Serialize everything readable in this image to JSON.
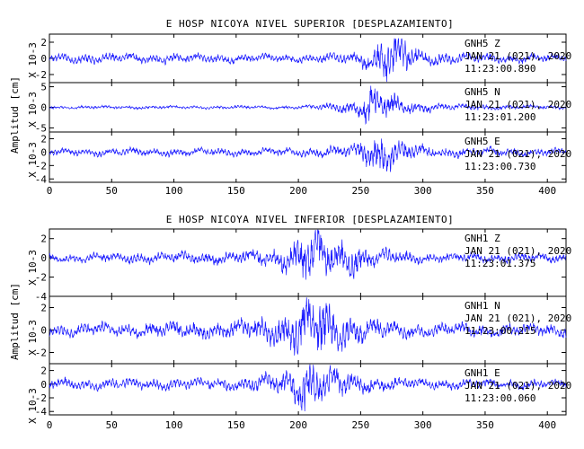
{
  "chart_data": [
    {
      "type": "line",
      "title": "E HOSP NICOYA NIVEL SUPERIOR [DESPLAZAMIENTO]",
      "ylabel": "Amplitud [cm]",
      "yscale_label": "X 10-3",
      "xlim": [
        0,
        415
      ],
      "xticks": [
        0,
        50,
        100,
        150,
        200,
        250,
        300,
        350,
        400
      ],
      "series": [
        {
          "name": "GNH5  Z",
          "date": "JAN 21 (021), 2020",
          "time": "11:23:00.890",
          "ylim": [
            -3,
            3
          ],
          "yticks": [
            -2,
            0,
            2
          ],
          "envelope": [
            [
              0,
              0.5
            ],
            [
              30,
              0.6
            ],
            [
              200,
              0.45
            ],
            [
              240,
              0.6
            ],
            [
              260,
              1.5
            ],
            [
              270,
              2.7
            ],
            [
              285,
              2.2
            ],
            [
              300,
              0.8
            ],
            [
              350,
              0.5
            ],
            [
              415,
              0.45
            ]
          ]
        },
        {
          "name": "GNH5  N",
          "date": "JAN 21 (021), 2020",
          "time": "11:23:01.200",
          "ylim": [
            -6,
            6
          ],
          "yticks": [
            -5,
            0,
            5
          ],
          "envelope": [
            [
              0,
              0.35
            ],
            [
              200,
              0.35
            ],
            [
              230,
              0.9
            ],
            [
              250,
              2.0
            ],
            [
              258,
              4.8
            ],
            [
              265,
              3.5
            ],
            [
              285,
              1.6
            ],
            [
              320,
              0.7
            ],
            [
              415,
              0.35
            ]
          ]
        },
        {
          "name": "GNH5  E",
          "date": "JAN 21 (021), 2020",
          "time": "11:23:00.730",
          "ylim": [
            -4.5,
            3
          ],
          "yticks": [
            -4,
            -2,
            0,
            2
          ],
          "envelope": [
            [
              0,
              0.5
            ],
            [
              200,
              0.55
            ],
            [
              240,
              0.9
            ],
            [
              258,
              2.0
            ],
            [
              265,
              2.8
            ],
            [
              280,
              1.6
            ],
            [
              310,
              0.7
            ],
            [
              415,
              0.45
            ]
          ]
        }
      ]
    },
    {
      "type": "line",
      "title": "E HOSP NICOYA NIVEL INFERIOR [DESPLAZAMIENTO]",
      "ylabel": "Amplitud [cm]",
      "yscale_label": "X 10-3",
      "xlim": [
        0,
        415
      ],
      "xticks": [
        0,
        50,
        100,
        150,
        200,
        250,
        300,
        350,
        400
      ],
      "series": [
        {
          "name": "GNH1  Z",
          "date": "JAN 21 (021), 2020",
          "time": "11:23:01.375",
          "ylim": [
            -4,
            3
          ],
          "yticks": [
            -4,
            -2,
            0,
            2
          ],
          "envelope": [
            [
              0,
              0.4
            ],
            [
              150,
              0.6
            ],
            [
              180,
              0.9
            ],
            [
              200,
              1.8
            ],
            [
              215,
              2.8
            ],
            [
              230,
              2.0
            ],
            [
              260,
              0.9
            ],
            [
              300,
              0.45
            ],
            [
              415,
              0.45
            ]
          ]
        },
        {
          "name": "GNH1  N",
          "date": "JAN 21 (021), 2020",
          "time": "11:23:00.215",
          "ylim": [
            -3,
            3
          ],
          "yticks": [
            -2,
            0,
            2
          ],
          "envelope": [
            [
              0,
              0.5
            ],
            [
              150,
              0.7
            ],
            [
              190,
              1.3
            ],
            [
              205,
              2.8
            ],
            [
              220,
              2.4
            ],
            [
              250,
              1.0
            ],
            [
              300,
              0.55
            ],
            [
              415,
              0.5
            ]
          ]
        },
        {
          "name": "GNH1  E",
          "date": "JAN 21 (021), 2020",
          "time": "11:23:00.060",
          "ylim": [
            -4.5,
            3
          ],
          "yticks": [
            -4,
            -2,
            0,
            2
          ],
          "envelope": [
            [
              0,
              0.7
            ],
            [
              150,
              0.8
            ],
            [
              190,
              1.6
            ],
            [
              205,
              3.6
            ],
            [
              220,
              2.6
            ],
            [
              250,
              1.2
            ],
            [
              300,
              0.7
            ],
            [
              415,
              0.6
            ]
          ]
        }
      ]
    }
  ],
  "colors": {
    "trace": "#1a1aff",
    "axis": "#000000",
    "background": "#ffffff"
  }
}
